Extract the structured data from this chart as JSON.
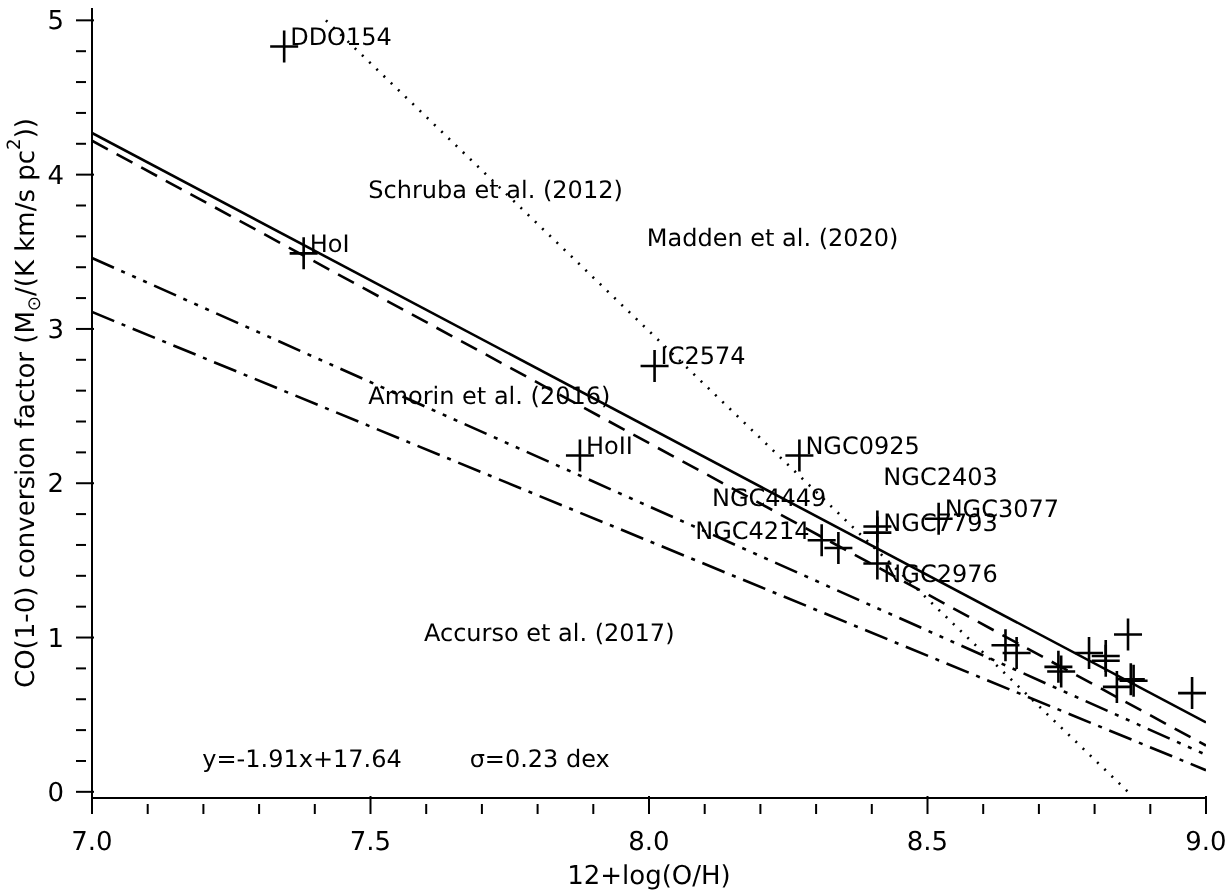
{
  "chart_data": {
    "type": "scatter",
    "xlabel": "12+log(O/H)",
    "ylabel": "CO(1-0) conversion factor (M$_{⊙}$/(K km/s pc$^{2}$))",
    "xlim": [
      7.0,
      9.0
    ],
    "ylim": [
      -0.04,
      5.08
    ],
    "xticks": [
      {
        "value": 7.0,
        "label": "7.0"
      },
      {
        "value": 7.1,
        "label": null
      },
      {
        "value": 7.2,
        "label": null
      },
      {
        "value": 7.3,
        "label": null
      },
      {
        "value": 7.4,
        "label": null
      },
      {
        "value": 7.5,
        "label": "7.5"
      },
      {
        "value": 7.6,
        "label": null
      },
      {
        "value": 7.7,
        "label": null
      },
      {
        "value": 7.8,
        "label": null
      },
      {
        "value": 7.9,
        "label": null
      },
      {
        "value": 8.0,
        "label": "8.0"
      },
      {
        "value": 8.1,
        "label": null
      },
      {
        "value": 8.2,
        "label": null
      },
      {
        "value": 8.3,
        "label": null
      },
      {
        "value": 8.4,
        "label": null
      },
      {
        "value": 8.5,
        "label": "8.5"
      },
      {
        "value": 8.6,
        "label": null
      },
      {
        "value": 8.7,
        "label": null
      },
      {
        "value": 8.8,
        "label": null
      },
      {
        "value": 8.9,
        "label": null
      },
      {
        "value": 9.0,
        "label": "9.0"
      }
    ],
    "yticks": [
      0,
      {
        "value": 0.2,
        "label": null
      },
      {
        "value": 0.4,
        "label": null
      },
      {
        "value": 0.6,
        "label": null
      },
      {
        "value": 0.8,
        "label": null
      },
      1,
      {
        "value": 1.2,
        "label": null
      },
      {
        "value": 1.4,
        "label": null
      },
      {
        "value": 1.6,
        "label": null
      },
      {
        "value": 1.8,
        "label": null
      },
      2,
      {
        "value": 2.2,
        "label": null
      },
      {
        "value": 2.4,
        "label": null
      },
      {
        "value": 2.6,
        "label": null
      },
      {
        "value": 2.8,
        "label": null
      },
      3,
      {
        "value": 3.2,
        "label": null
      },
      {
        "value": 3.4,
        "label": null
      },
      {
        "value": 3.6,
        "label": null
      },
      {
        "value": 3.8,
        "label": null
      },
      4,
      {
        "value": 4.2,
        "label": null
      },
      {
        "value": 4.4,
        "label": null
      },
      {
        "value": 4.6,
        "label": null
      },
      {
        "value": 4.8,
        "label": null
      },
      5
    ],
    "series": [
      {
        "marker": "cross",
        "color": "#000000",
        "x": [
          7.345,
          7.38,
          8.01,
          7.876,
          8.27,
          8.31,
          8.34,
          8.41,
          8.41,
          8.52,
          8.41,
          8.64,
          8.66,
          8.735,
          8.74,
          8.79,
          8.82,
          8.82,
          8.86,
          8.84,
          8.865,
          8.87,
          8.975
        ],
        "values": [
          4.83,
          3.49,
          2.76,
          2.18,
          2.18,
          1.63,
          1.58,
          1.72,
          1.68,
          1.77,
          1.48,
          0.95,
          0.9,
          0.81,
          0.78,
          0.9,
          0.88,
          0.85,
          1.02,
          0.68,
          0.73,
          0.72,
          0.64
        ]
      },
      {
        "type": "line",
        "line_style": "solid",
        "color": "#000000",
        "x": [
          7.0,
          9.0
        ],
        "values": [
          4.27,
          0.45
        ]
      },
      {
        "type": "line",
        "line_style": "dashed",
        "color": "#000000",
        "x": [
          7.0,
          9.0
        ],
        "values": [
          4.22,
          0.3
        ]
      },
      {
        "type": "line",
        "line_style": "dashdotdot",
        "color": "#000000",
        "x": [
          7.0,
          9.0
        ],
        "values": [
          3.46,
          0.24
        ]
      },
      {
        "type": "line",
        "line_style": "dashdot",
        "color": "#000000",
        "x": [
          7.0,
          9.0
        ],
        "values": [
          3.11,
          0.14
        ]
      },
      {
        "type": "line",
        "line_style": "dotted",
        "color": "#000000",
        "x": [
          7.42,
          8.86
        ],
        "values": [
          5.0,
          0.0
        ]
      }
    ],
    "annotations": [
      {
        "text": "DDO154",
        "x": 7.345,
        "y": 4.83
      },
      {
        "text": "HoI",
        "x": 7.38,
        "y": 3.49
      },
      {
        "text": "IC2574",
        "x": 8.01,
        "y": 2.76
      },
      {
        "text": "HoII",
        "x": 7.876,
        "y": 2.18
      },
      {
        "text": "NGC0925",
        "x": 8.27,
        "y": 2.18
      },
      {
        "text": "NGC4214",
        "x": 8.31,
        "y": 1.63
      },
      {
        "text": "NGC4449",
        "x": 8.34,
        "y": 1.58
      },
      {
        "text": "NGC2403",
        "x": 8.41,
        "y": 1.72
      },
      {
        "text": "NGC7793",
        "x": 8.41,
        "y": 1.68
      },
      {
        "text": "NGC3077",
        "x": 8.52,
        "y": 1.77
      },
      {
        "text": "NGC2976",
        "x": 8.41,
        "y": 1.48
      },
      "Schruba et al. (2012)",
      "Madden et al. (2020)",
      "Amorin et al. (2016)",
      "Accurso et al. (2017)",
      "y=-1.91x+17.64",
      "σ=0.23 dex"
    ]
  }
}
